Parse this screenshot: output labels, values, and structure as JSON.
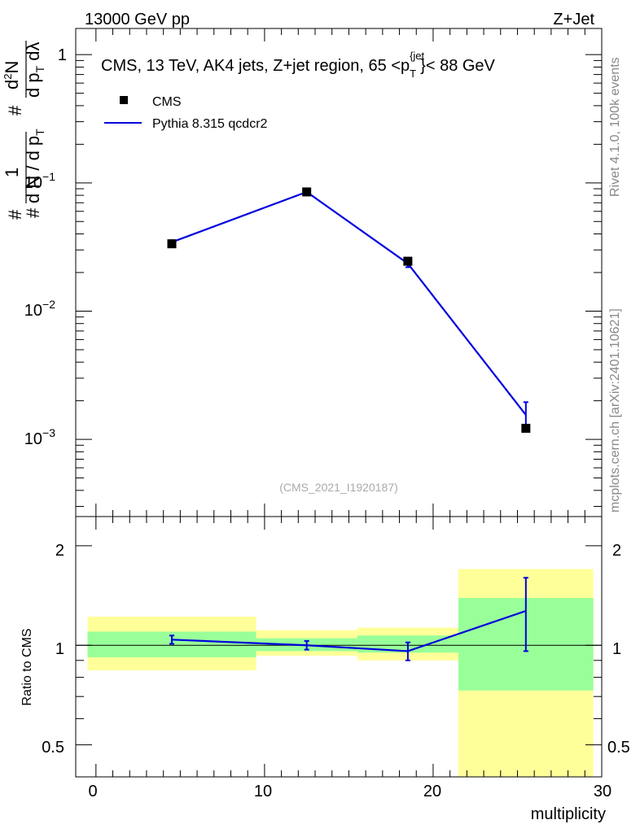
{
  "header": {
    "left": "13000 GeV pp",
    "right": "Z+Jet"
  },
  "side_labels": {
    "rivet": "Rivet 4.1.0,  100k events",
    "mcplots": "mcplots.cern.ch [arXiv:2401.10621]"
  },
  "colors": {
    "data": "#000000",
    "mc": "#0000dd",
    "band_inner": "#99ff99",
    "band_outer": "#ffff99"
  },
  "chart_data": [
    {
      "type": "line",
      "panel": "main",
      "title_parts": {
        "main": "CMS, 13 TeV, AK4 jets, Z+jet region, 65 <p",
        "sub": "T",
        "sup": "{jet",
        "close": "}< 88 GeV"
      },
      "ylabel_parts": {
        "hash": "#",
        "one": "1",
        "den1": "d N / d p",
        "den_sub": "T",
        "hash2": "#",
        "d2N": "d",
        "d2sup": "2",
        "d2N_rest": "N",
        "den2": "d p",
        "den2_sub": "T",
        "den2_rest": " dλ"
      },
      "yscale": "log",
      "ylim": [
        0.00025,
        1.6
      ],
      "ytick_labels": [
        {
          "base": "1",
          "exp": ""
        },
        {
          "base": "10",
          "exp": "−1"
        },
        {
          "base": "10",
          "exp": "−2"
        },
        {
          "base": "10",
          "exp": "−3"
        }
      ],
      "xlim": [
        -1.2,
        30
      ],
      "watermark": "(CMS_2021_I1920187)",
      "legend": {
        "placement": "top-left",
        "entries": [
          "CMS",
          "Pythia 8.315 qcdcr2"
        ]
      },
      "series": [
        {
          "name": "CMS",
          "style": "markers",
          "x": [
            4.5,
            12.5,
            18.5,
            25.5
          ],
          "y": [
            0.0335,
            0.085,
            0.0245,
            0.00122
          ],
          "yerr": [
            0.0025,
            0.003,
            0.0015,
            8e-05
          ]
        },
        {
          "name": "Pythia 8.315 qcdcr2",
          "style": "line",
          "x": [
            4.5,
            12.5,
            18.5,
            25.5
          ],
          "y": [
            0.0345,
            0.085,
            0.0235,
            0.00155
          ],
          "yerr": [
            0.0012,
            0.0015,
            0.0015,
            0.0004
          ]
        }
      ]
    },
    {
      "type": "line",
      "panel": "ratio",
      "ylabel": "Ratio to CMS",
      "xlabel": "multiplicity",
      "yscale": "log",
      "ylim": [
        0.4,
        2.45
      ],
      "ytick_labels": [
        "2",
        "1",
        "0.5"
      ],
      "yticks": [
        2,
        1,
        0.5
      ],
      "xlim": [
        -1.2,
        30
      ],
      "xticks": [
        0,
        10,
        20,
        30
      ],
      "xtick_labels": [
        "0",
        "10",
        "20",
        "30"
      ],
      "bins": [
        {
          "lo": -0.5,
          "hi": 9.5,
          "inner": [
            0.92,
            1.1
          ],
          "outer": [
            0.84,
            1.22
          ]
        },
        {
          "lo": 9.5,
          "hi": 15.5,
          "inner": [
            0.96,
            1.05
          ],
          "outer": [
            0.93,
            1.11
          ]
        },
        {
          "lo": 15.5,
          "hi": 21.5,
          "inner": [
            0.95,
            1.07
          ],
          "outer": [
            0.9,
            1.13
          ]
        },
        {
          "lo": 21.5,
          "hi": 29.5,
          "inner": [
            0.73,
            1.39
          ],
          "outer": [
            0.38,
            1.7
          ]
        }
      ],
      "series": [
        {
          "name": "Pythia 8.315 qcdcr2 / CMS",
          "x": [
            4.5,
            12.5,
            18.5,
            25.5
          ],
          "y": [
            1.04,
            1.0,
            0.96,
            1.27
          ],
          "yerr_lo": [
            0.03,
            0.03,
            0.06,
            0.31
          ],
          "yerr_hi": [
            0.03,
            0.03,
            0.06,
            0.33
          ]
        }
      ]
    }
  ]
}
